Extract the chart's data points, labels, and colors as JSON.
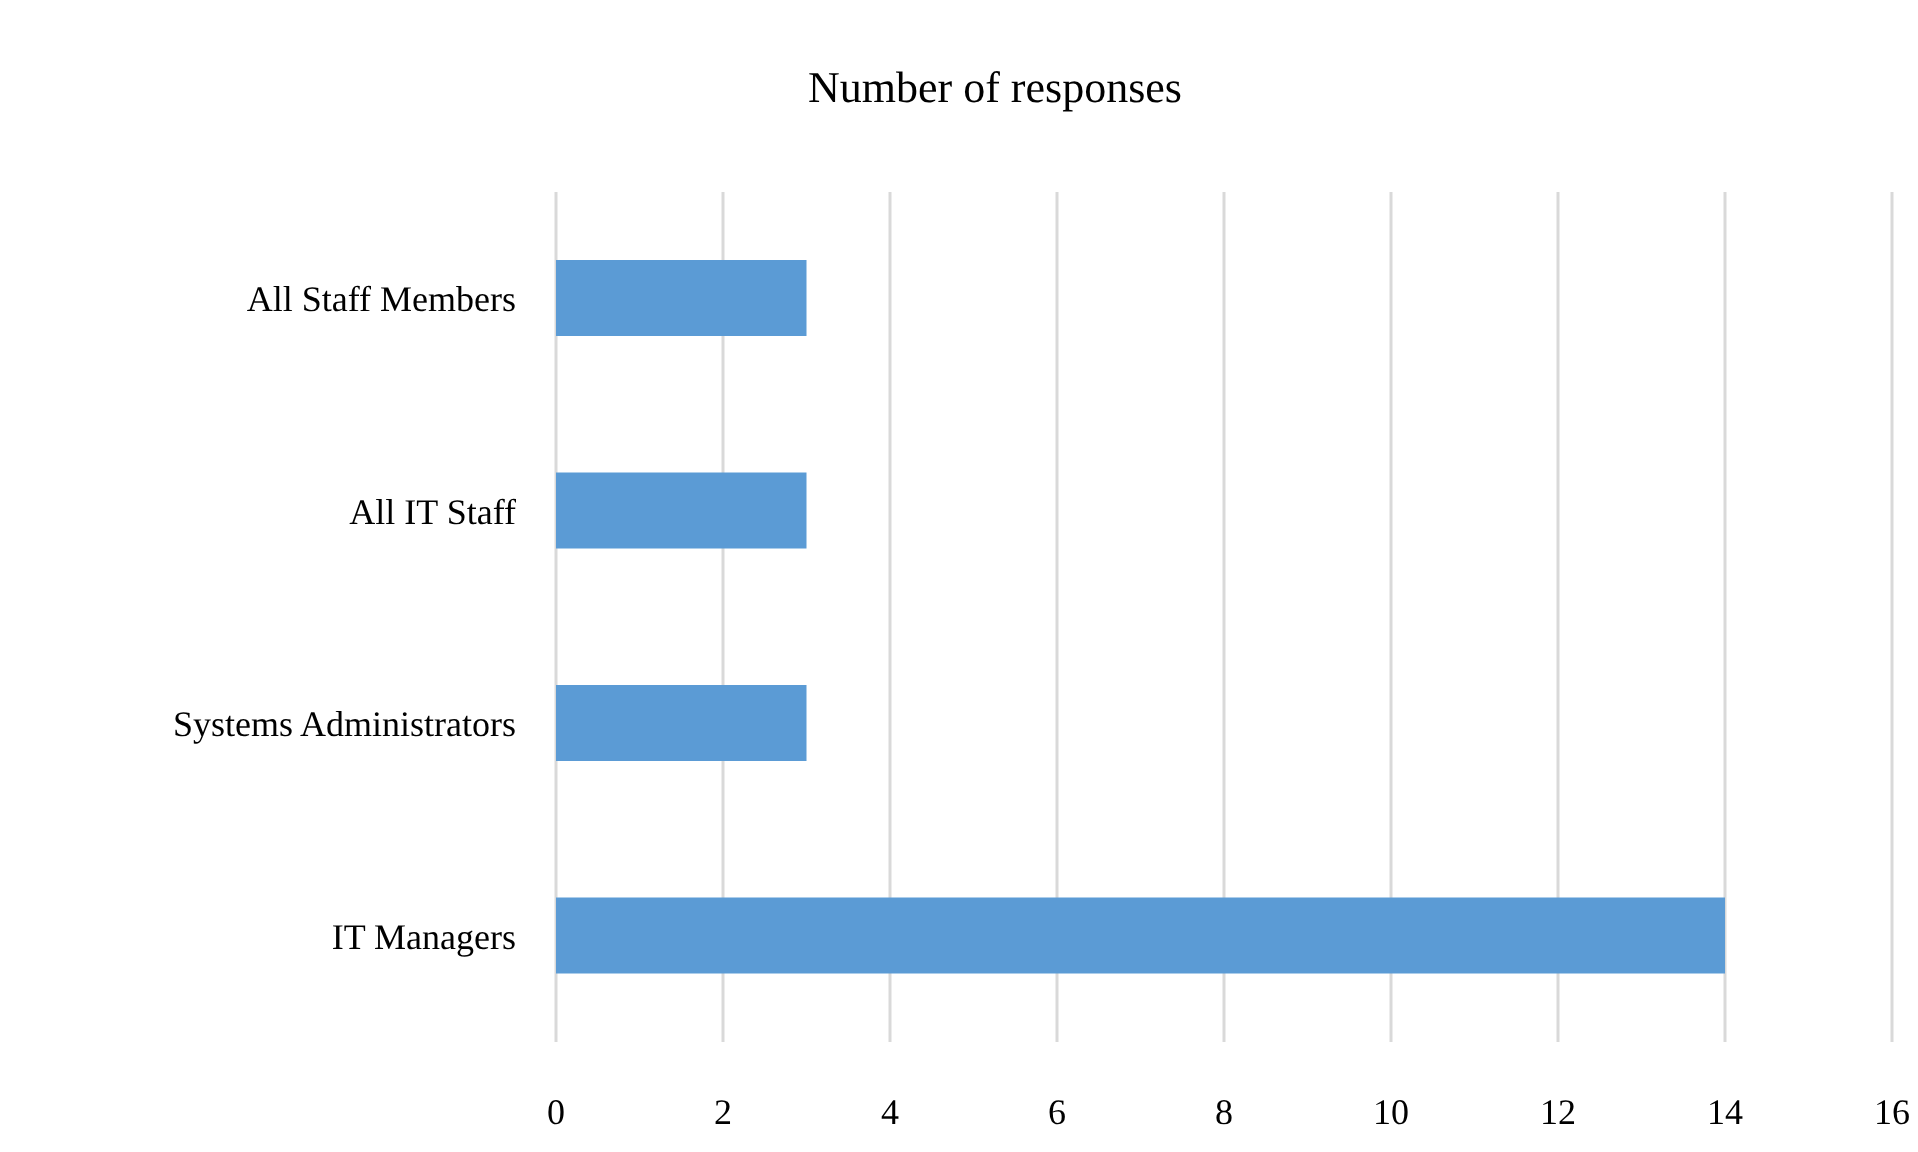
{
  "chart_data": {
    "type": "bar",
    "title": "Number of responses",
    "orientation": "horizontal",
    "categories": [
      "All Staff Members",
      "All IT Staff",
      "Systems Administrators",
      "IT Managers"
    ],
    "values": [
      3,
      3,
      3,
      14
    ],
    "color": "#5b9bd5",
    "xlim": [
      0,
      16
    ],
    "xticks": [
      0,
      2,
      4,
      6,
      8,
      10,
      12,
      14,
      16
    ],
    "grid": "x"
  }
}
